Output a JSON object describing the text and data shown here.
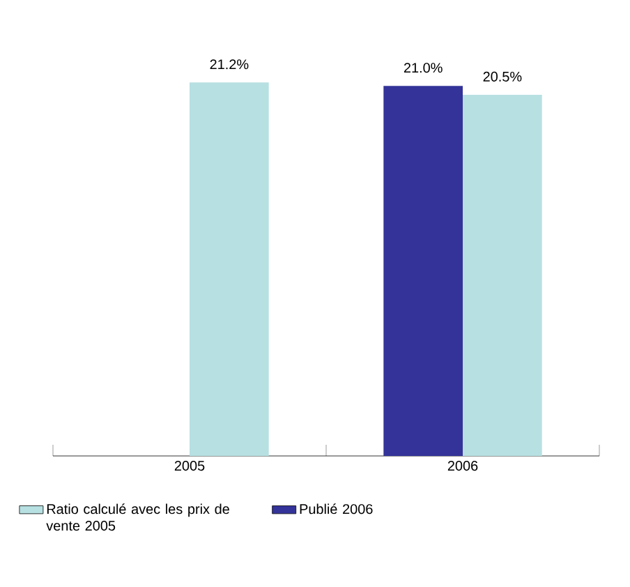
{
  "chart_data": {
    "type": "bar",
    "categories": [
      "2005",
      "2006"
    ],
    "series": [
      {
        "name": "Ratio calculé avec les prix de vente 2005",
        "color": "#b7e0e2",
        "values": [
          21.2,
          20.5
        ],
        "value_labels": [
          "21.2%",
          "20.5%"
        ]
      },
      {
        "name": "Publié 2006",
        "color": "#333399",
        "values": [
          null,
          21.0
        ],
        "value_labels": [
          null,
          "21.0%"
        ]
      }
    ],
    "legend": "bottom"
  }
}
